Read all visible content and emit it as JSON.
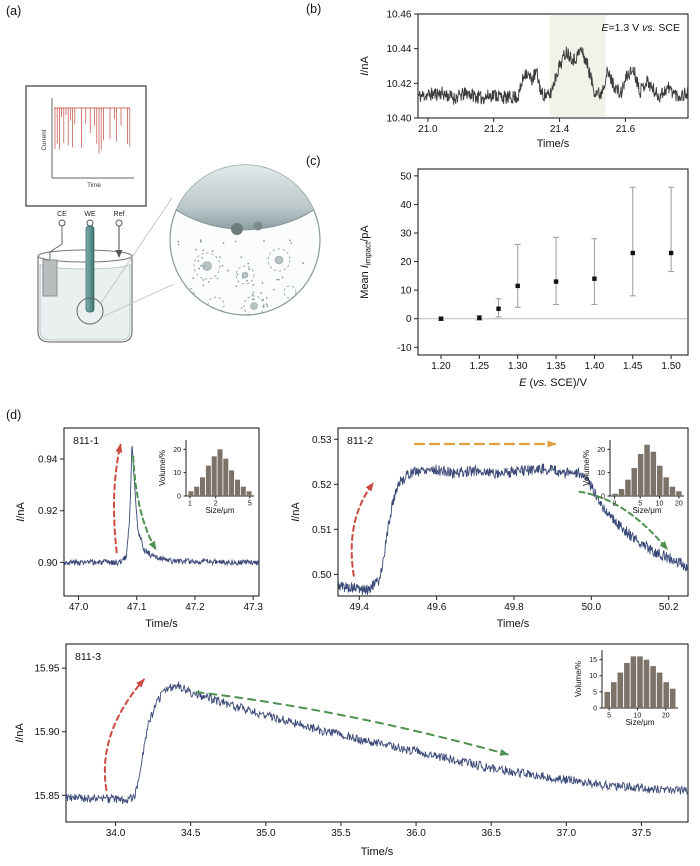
{
  "labels": {
    "a": "(a)",
    "b": "(b)",
    "c": "(c)",
    "d": "(d)"
  },
  "schematic": {
    "current_label": "Current",
    "time_label": "Time",
    "electrodes": [
      "CE",
      "WE",
      "Ref"
    ]
  },
  "chart_data": [
    {
      "id": "b",
      "type": "line",
      "color": "#3c3c3c",
      "seed": 11,
      "n": 650,
      "noise": 0.004,
      "xlim": [
        20.97,
        21.79
      ],
      "ylim": [
        10.4,
        10.46
      ],
      "xticks": [
        {
          "v": 21.0,
          "l": "21.0"
        },
        {
          "v": 21.2,
          "l": "21.2"
        },
        {
          "v": 21.4,
          "l": "21.4"
        },
        {
          "v": 21.6,
          "l": "21.6"
        }
      ],
      "yticks": [
        {
          "v": 10.4,
          "l": "10.40"
        },
        {
          "v": 10.42,
          "l": "10.42"
        },
        {
          "v": 10.44,
          "l": "10.44"
        },
        {
          "v": 10.46,
          "l": "10.46"
        }
      ],
      "xlabel_parts": [
        {
          "t": "Time/s",
          "s": "n"
        }
      ],
      "ylabel_parts": [
        {
          "t": "I",
          "s": "i"
        },
        {
          "t": "/nA",
          "s": "n"
        }
      ],
      "annotation_parts": [
        {
          "t": "E",
          "s": "i"
        },
        {
          "t": "=1.3 V ",
          "s": "n"
        },
        {
          "t": "vs.",
          "s": "i"
        },
        {
          "t": " SCE",
          "s": "n"
        }
      ],
      "band": {
        "x0": 21.37,
        "x1": 21.54,
        "color": "#f2f2e9"
      },
      "anchors": [
        [
          20.97,
          10.4125
        ],
        [
          21.04,
          10.4145
        ],
        [
          21.08,
          10.4115
        ],
        [
          21.12,
          10.4145
        ],
        [
          21.16,
          10.4115
        ],
        [
          21.2,
          10.4135
        ],
        [
          21.24,
          10.4115
        ],
        [
          21.275,
          10.4125
        ],
        [
          21.295,
          10.427
        ],
        [
          21.315,
          10.422
        ],
        [
          21.33,
          10.4265
        ],
        [
          21.345,
          10.414
        ],
        [
          21.37,
          10.4125
        ],
        [
          21.395,
          10.428
        ],
        [
          21.42,
          10.4385
        ],
        [
          21.445,
          10.4335
        ],
        [
          21.465,
          10.4395
        ],
        [
          21.485,
          10.4305
        ],
        [
          21.505,
          10.416
        ],
        [
          21.525,
          10.4135
        ],
        [
          21.545,
          10.4265
        ],
        [
          21.565,
          10.419
        ],
        [
          21.585,
          10.4135
        ],
        [
          21.605,
          10.4245
        ],
        [
          21.625,
          10.428
        ],
        [
          21.645,
          10.4155
        ],
        [
          21.665,
          10.4215
        ],
        [
          21.7,
          10.4125
        ],
        [
          21.73,
          10.4175
        ],
        [
          21.76,
          10.4125
        ],
        [
          21.79,
          10.4145
        ]
      ]
    },
    {
      "id": "c",
      "type": "scatter",
      "marker_color": "#111111",
      "error_color": "#9a9a9a",
      "zero_line": true,
      "xlim": [
        1.17,
        1.522
      ],
      "ylim": [
        -12.7,
        52.4
      ],
      "xticks": [
        {
          "v": 1.2,
          "l": "1.20"
        },
        {
          "v": 1.25,
          "l": "1.25"
        },
        {
          "v": 1.3,
          "l": "1.30"
        },
        {
          "v": 1.35,
          "l": "1.35"
        },
        {
          "v": 1.4,
          "l": "1.40"
        },
        {
          "v": 1.45,
          "l": "1.45"
        },
        {
          "v": 1.5,
          "l": "1.50"
        }
      ],
      "yticks": [
        {
          "v": -10,
          "l": "-10"
        },
        {
          "v": 0,
          "l": "0"
        },
        {
          "v": 10,
          "l": "10"
        },
        {
          "v": 20,
          "l": "20"
        },
        {
          "v": 30,
          "l": "30"
        },
        {
          "v": 40,
          "l": "40"
        },
        {
          "v": 50,
          "l": "50"
        }
      ],
      "xlabel_parts": [
        {
          "t": "E",
          "s": "i"
        },
        {
          "t": " (",
          "s": "n"
        },
        {
          "t": "vs.",
          "s": "i"
        },
        {
          "t": " SCE)/V",
          "s": "n"
        }
      ],
      "ylabel_parts": [
        {
          "t": "Mean ",
          "s": "n"
        },
        {
          "t": "I",
          "s": "i"
        },
        {
          "t": "impact",
          "s": "sub"
        },
        {
          "t": "/pA",
          "s": "n"
        }
      ],
      "points": [
        {
          "x": 1.2,
          "y": 0.0,
          "lo": -0.6,
          "hi": 0.6
        },
        {
          "x": 1.25,
          "y": 0.3,
          "lo": -0.5,
          "hi": 1.1
        },
        {
          "x": 1.275,
          "y": 3.5,
          "lo": 0.6,
          "hi": 7.0
        },
        {
          "x": 1.3,
          "y": 11.5,
          "lo": 4.0,
          "hi": 26.0
        },
        {
          "x": 1.35,
          "y": 13.0,
          "lo": 5.0,
          "hi": 28.5
        },
        {
          "x": 1.4,
          "y": 14.0,
          "lo": 5.0,
          "hi": 28.0
        },
        {
          "x": 1.45,
          "y": 23.0,
          "lo": 8.0,
          "hi": 46.0
        },
        {
          "x": 1.5,
          "y": 23.0,
          "lo": 16.5,
          "hi": 46.0
        }
      ]
    },
    {
      "id": "d1",
      "type": "line",
      "label": "811-1",
      "color": "#3b4a78",
      "seed": 3,
      "n": 420,
      "noise": 0.0011,
      "xlim": [
        46.975,
        47.31
      ],
      "ylim": [
        0.887,
        0.952
      ],
      "xticks": [
        {
          "v": 47.0,
          "l": "47.0"
        },
        {
          "v": 47.1,
          "l": "47.1"
        },
        {
          "v": 47.2,
          "l": "47.2"
        },
        {
          "v": 47.3,
          "l": "47.3"
        }
      ],
      "yticks": [
        {
          "v": 0.9,
          "l": "0.90"
        },
        {
          "v": 0.92,
          "l": "0.92"
        },
        {
          "v": 0.94,
          "l": "0.94"
        }
      ],
      "xlabel_parts": [
        {
          "t": "Time/s",
          "s": "n"
        }
      ],
      "ylabel_parts": [
        {
          "t": "I",
          "s": "i"
        },
        {
          "t": "/nA",
          "s": "n"
        }
      ],
      "anchors": [
        [
          46.975,
          0.9
        ],
        [
          47.07,
          0.9
        ],
        [
          47.082,
          0.902
        ],
        [
          47.088,
          0.918
        ],
        [
          47.092,
          0.947
        ],
        [
          47.096,
          0.93
        ],
        [
          47.102,
          0.913
        ],
        [
          47.112,
          0.905
        ],
        [
          47.13,
          0.902
        ],
        [
          47.16,
          0.9005
        ],
        [
          47.31,
          0.9
        ]
      ],
      "arrows": [
        {
          "color": "#cb4a42",
          "width": 2,
          "dash": "5 4",
          "pts": [
            [
              0.27,
              0.74
            ],
            [
              0.235,
              0.38
            ],
            [
              0.29,
              0.1
            ]
          ]
        },
        {
          "color": "#4e9150",
          "width": 2,
          "dash": "5 4",
          "pts": [
            [
              0.355,
              0.17
            ],
            [
              0.37,
              0.52
            ],
            [
              0.47,
              0.72
            ]
          ]
        }
      ],
      "inset_id": "d1_hist"
    },
    {
      "id": "d1_hist",
      "type": "bar",
      "xlog": true,
      "bar_color": "#7d7268",
      "xlim": [
        0.9,
        5.6
      ],
      "ylim": [
        0,
        24
      ],
      "xticks": [
        {
          "v": 1,
          "l": "1"
        },
        {
          "v": 2,
          "l": "2"
        },
        {
          "v": 5,
          "l": "5"
        }
      ],
      "yticks": [
        {
          "v": 0,
          "l": "0"
        },
        {
          "v": 10,
          "l": "10"
        },
        {
          "v": 20,
          "l": "20"
        }
      ],
      "xlabel_parts": [
        {
          "t": "Size/μm",
          "s": "n"
        }
      ],
      "ylabel_parts": [
        {
          "t": "Volume/%",
          "s": "n"
        }
      ],
      "values": [
        2,
        4,
        8,
        13,
        17,
        20,
        16,
        11,
        7,
        4,
        2
      ]
    },
    {
      "id": "d2",
      "type": "line",
      "label": "811-2",
      "color": "#3b4a78",
      "seed": 5,
      "n": 700,
      "noise": 0.0012,
      "xlim": [
        49.345,
        50.25
      ],
      "ylim": [
        0.4952,
        0.5325
      ],
      "xticks": [
        {
          "v": 49.4,
          "l": "49.4"
        },
        {
          "v": 49.6,
          "l": "49.6"
        },
        {
          "v": 49.8,
          "l": "49.8"
        },
        {
          "v": 50.0,
          "l": "50.0"
        },
        {
          "v": 50.2,
          "l": "50.2"
        }
      ],
      "yticks": [
        {
          "v": 0.5,
          "l": "0.50"
        },
        {
          "v": 0.51,
          "l": "0.51"
        },
        {
          "v": 0.52,
          "l": "0.52"
        },
        {
          "v": 0.53,
          "l": "0.53"
        }
      ],
      "xlabel_parts": [
        {
          "t": "Time/s",
          "s": "n"
        }
      ],
      "ylabel_parts": [
        {
          "t": "I",
          "s": "i"
        },
        {
          "t": "/nA",
          "s": "n"
        }
      ],
      "anchors": [
        [
          49.345,
          0.4975
        ],
        [
          49.42,
          0.4965
        ],
        [
          49.45,
          0.4985
        ],
        [
          49.462,
          0.503
        ],
        [
          49.472,
          0.509
        ],
        [
          49.485,
          0.5155
        ],
        [
          49.5,
          0.52
        ],
        [
          49.53,
          0.5225
        ],
        [
          49.58,
          0.5235
        ],
        [
          49.64,
          0.5225
        ],
        [
          49.7,
          0.523
        ],
        [
          49.76,
          0.5225
        ],
        [
          49.82,
          0.523
        ],
        [
          49.88,
          0.5235
        ],
        [
          49.93,
          0.5225
        ],
        [
          49.97,
          0.5225
        ],
        [
          50.0,
          0.5195
        ],
        [
          50.03,
          0.515
        ],
        [
          50.07,
          0.511
        ],
        [
          50.11,
          0.508
        ],
        [
          50.15,
          0.5057
        ],
        [
          50.19,
          0.504
        ],
        [
          50.23,
          0.5025
        ],
        [
          50.25,
          0.5015
        ]
      ],
      "arrows": [
        {
          "color": "#cb4a42",
          "width": 2,
          "dash": "5 4",
          "pts": [
            [
              0.045,
              0.88
            ],
            [
              0.02,
              0.55
            ],
            [
              0.1,
              0.33
            ]
          ]
        },
        {
          "color": "#dfa13d",
          "width": 2.2,
          "dash": "9 6",
          "pts": [
            [
              0.22,
              0.095
            ],
            [
              0.62,
              0.095
            ]
          ]
        },
        {
          "color": "#4e9150",
          "width": 2,
          "dash": "5 4",
          "pts": [
            [
              0.69,
              0.38
            ],
            [
              0.82,
              0.42
            ],
            [
              0.94,
              0.72
            ]
          ]
        }
      ],
      "inset_id": "d2_hist"
    },
    {
      "id": "d2_hist",
      "type": "bar",
      "xlog": true,
      "bar_color": "#7d7268",
      "xlim": [
        1.7,
        24
      ],
      "ylim": [
        0,
        24
      ],
      "xticks": [
        {
          "v": 2,
          "l": "2"
        },
        {
          "v": 5,
          "l": "5"
        },
        {
          "v": 10,
          "l": "10"
        },
        {
          "v": 20,
          "l": "20"
        }
      ],
      "yticks": [
        {
          "v": 0,
          "l": "0"
        },
        {
          "v": 10,
          "l": "10"
        },
        {
          "v": 20,
          "l": "20"
        }
      ],
      "xlabel_parts": [
        {
          "t": "Size/μm",
          "s": "n"
        }
      ],
      "ylabel_parts": [
        {
          "t": "Volume/%",
          "s": "n"
        }
      ],
      "values": [
        1,
        3,
        7,
        12,
        18,
        22,
        19,
        13,
        8,
        4,
        2
      ]
    },
    {
      "id": "d3",
      "type": "line",
      "label": "811-3",
      "color": "#3b4a78",
      "seed": 9,
      "n": 900,
      "noise": 0.0035,
      "xlim": [
        33.67,
        37.81
      ],
      "ylim": [
        15.829,
        15.969
      ],
      "xticks": [
        {
          "v": 34.0,
          "l": "34.0"
        },
        {
          "v": 34.5,
          "l": "34.5"
        },
        {
          "v": 35.0,
          "l": "35.0"
        },
        {
          "v": 35.5,
          "l": "35.5"
        },
        {
          "v": 36.0,
          "l": "36.0"
        },
        {
          "v": 36.5,
          "l": "36.5"
        },
        {
          "v": 37.0,
          "l": "37.0"
        },
        {
          "v": 37.5,
          "l": "37.5"
        }
      ],
      "yticks": [
        {
          "v": 15.85,
          "l": "15.85"
        },
        {
          "v": 15.9,
          "l": "15.90"
        },
        {
          "v": 15.95,
          "l": "15.95"
        }
      ],
      "xlabel_parts": [
        {
          "t": "Time/s",
          "s": "n"
        }
      ],
      "ylabel_parts": [
        {
          "t": "I",
          "s": "i"
        },
        {
          "t": "/nA",
          "s": "n"
        }
      ],
      "anchors": [
        [
          33.67,
          15.848
        ],
        [
          33.9,
          15.8475
        ],
        [
          34.08,
          15.846
        ],
        [
          34.13,
          15.85
        ],
        [
          34.17,
          15.875
        ],
        [
          34.22,
          15.906
        ],
        [
          34.28,
          15.925
        ],
        [
          34.35,
          15.9345
        ],
        [
          34.42,
          15.9365
        ],
        [
          34.5,
          15.9305
        ],
        [
          34.62,
          15.9265
        ],
        [
          34.78,
          15.9205
        ],
        [
          34.95,
          15.9145
        ],
        [
          35.15,
          15.908
        ],
        [
          35.38,
          15.9005
        ],
        [
          35.62,
          15.894
        ],
        [
          35.88,
          15.8875
        ],
        [
          36.15,
          15.8805
        ],
        [
          36.45,
          15.8725
        ],
        [
          36.75,
          15.8665
        ],
        [
          37.05,
          15.8615
        ],
        [
          37.3,
          15.8575
        ],
        [
          37.58,
          15.855
        ],
        [
          37.81,
          15.8535
        ]
      ],
      "arrows": [
        {
          "color": "#cb4a42",
          "width": 2,
          "dash": "5 4",
          "pts": [
            [
              0.065,
              0.82
            ],
            [
              0.05,
              0.5
            ],
            [
              0.125,
              0.2
            ]
          ]
        },
        {
          "color": "#4e9150",
          "width": 2,
          "dash": "7 6",
          "pts": [
            [
              0.21,
              0.27
            ],
            [
              0.45,
              0.37
            ],
            [
              0.71,
              0.62
            ]
          ]
        }
      ],
      "inset_id": "d3_hist"
    },
    {
      "id": "d3_hist",
      "type": "bar",
      "xlog": true,
      "bar_color": "#7d7268",
      "xlim": [
        4.2,
        27
      ],
      "ylim": [
        0,
        18
      ],
      "xticks": [
        {
          "v": 5,
          "l": "5"
        },
        {
          "v": 10,
          "l": "10"
        },
        {
          "v": 20,
          "l": "20"
        }
      ],
      "yticks": [
        {
          "v": 0,
          "l": "0"
        },
        {
          "v": 5,
          "l": "5"
        },
        {
          "v": 10,
          "l": "10"
        },
        {
          "v": 15,
          "l": "15"
        }
      ],
      "xlabel_parts": [
        {
          "t": "Size/μm",
          "s": "n"
        }
      ],
      "ylabel_parts": [
        {
          "t": "Volume/%",
          "s": "n"
        }
      ],
      "values": [
        5,
        8,
        11,
        14,
        16,
        16,
        15,
        13,
        11,
        8,
        6
      ]
    }
  ]
}
